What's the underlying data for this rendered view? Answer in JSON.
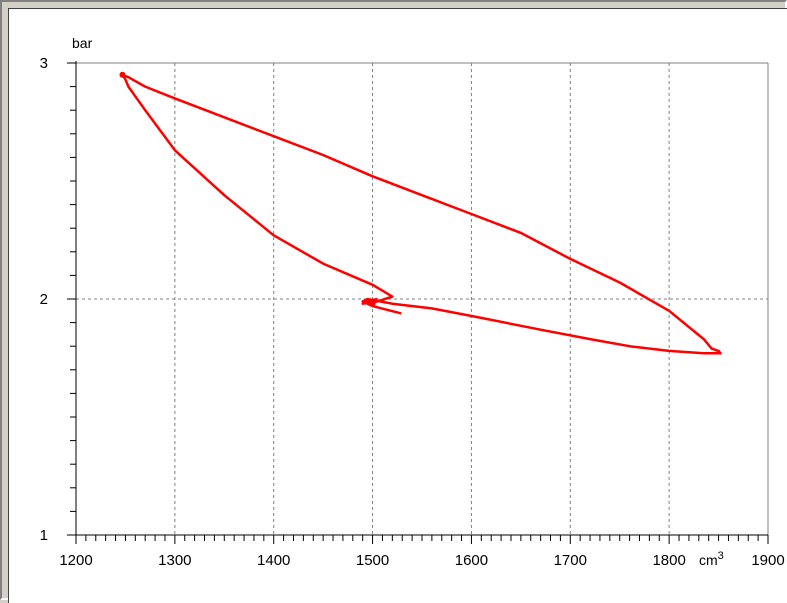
{
  "chart_data": {
    "type": "line",
    "title": "",
    "xlabel": "cm³",
    "ylabel": "bar",
    "xlim": [
      1200,
      1900
    ],
    "ylim": [
      1,
      3
    ],
    "x_ticks": [
      "1200",
      "1300",
      "1400",
      "1500",
      "1600",
      "1700",
      "1800",
      "1900"
    ],
    "y_ticks": [
      "1",
      "2",
      "3"
    ],
    "grid": true,
    "series": [
      {
        "color": "#ff0000",
        "x": [
          1528,
          1500,
          1490,
          1495,
          1520,
          1560,
          1610,
          1670,
          1720,
          1760,
          1800,
          1835,
          1852,
          1850,
          1843,
          1835,
          1800,
          1750,
          1700,
          1650,
          1600,
          1550,
          1500,
          1450,
          1400,
          1350,
          1300,
          1270,
          1253,
          1247,
          1250,
          1253,
          1270,
          1300,
          1350,
          1400,
          1450,
          1500,
          1520,
          1505,
          1490
        ],
        "y": [
          1.94,
          1.97,
          1.99,
          2.0,
          1.98,
          1.96,
          1.92,
          1.87,
          1.83,
          1.8,
          1.78,
          1.77,
          1.77,
          1.78,
          1.79,
          1.83,
          1.95,
          2.07,
          2.17,
          2.28,
          2.36,
          2.44,
          2.52,
          2.61,
          2.69,
          2.77,
          2.85,
          2.9,
          2.94,
          2.95,
          2.93,
          2.9,
          2.8,
          2.63,
          2.44,
          2.27,
          2.15,
          2.06,
          2.01,
          1.99,
          1.98
        ]
      }
    ],
    "arrow_marker": {
      "x": 1495,
      "y": 1.99
    },
    "colors": {
      "axis": "#000000",
      "grid": "#808080",
      "background": "#ffffff",
      "panel": "#d4d0c8"
    }
  }
}
